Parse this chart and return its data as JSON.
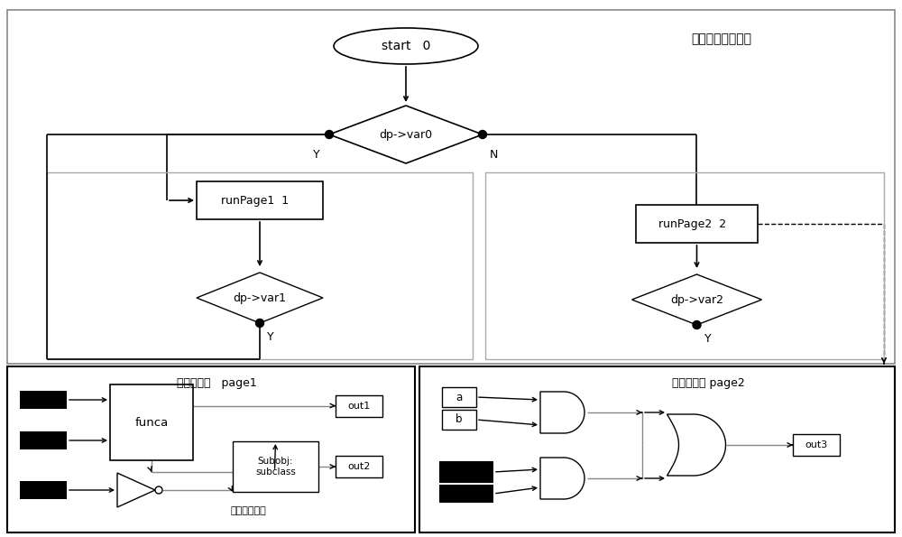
{
  "bg": "#ffffff",
  "title_ctrl": "顺序执行控制页面",
  "title_p1": "执行步页面   page1",
  "title_p2": "执行步页面 page2",
  "sub_p1": "功能图子页面",
  "start_txt": "start   0",
  "d0_txt": "dp->var0",
  "d1_txt": "dp->var1",
  "d2_txt": "dp->var2",
  "rp1_txt": "runPage1  1",
  "rp2_txt": "runPage2  2",
  "funca_txt": "funca",
  "subobj_txt": "Subobj:\nsubclass",
  "out1_txt": "out1",
  "out2_txt": "out2",
  "out3_txt": "out3",
  "a_txt": "a",
  "b_txt": "b",
  "Y_txt": "Y",
  "N_txt": "N"
}
